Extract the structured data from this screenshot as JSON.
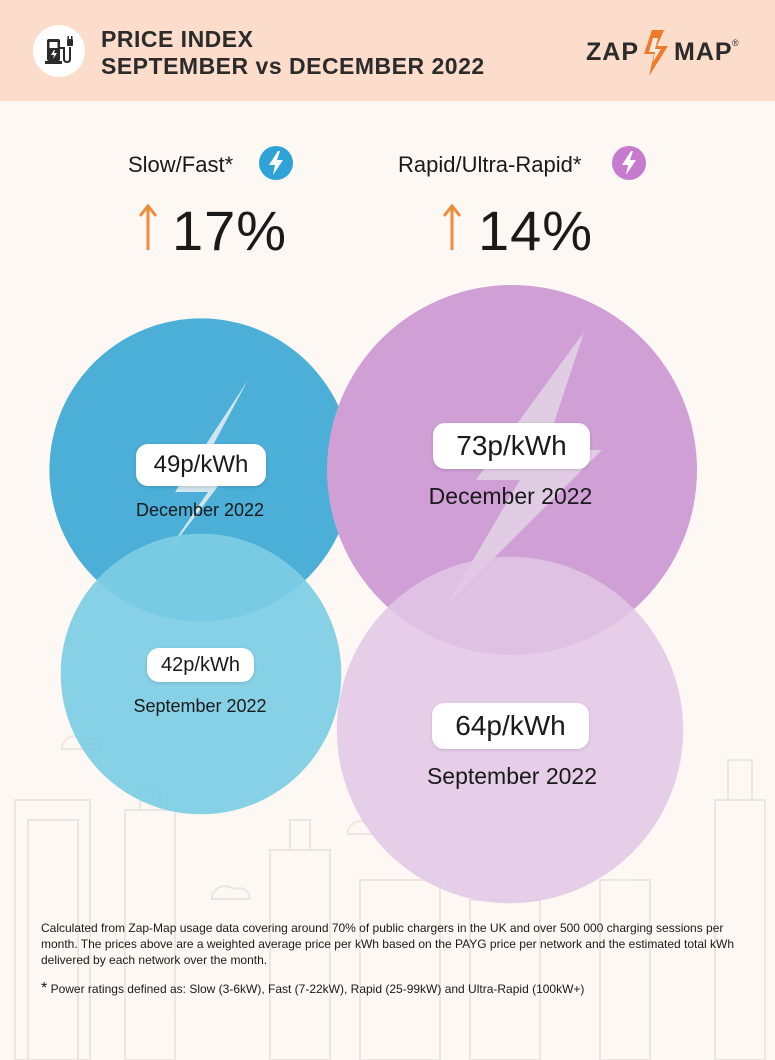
{
  "header": {
    "title_line1": "PRICE INDEX",
    "title_line2": "SEPTEMBER vs DECEMBER 2022",
    "logo_left": "ZAP",
    "logo_right": "MAP",
    "logo_mark": "®",
    "icon": "ev-charger-icon"
  },
  "colors": {
    "header_bg": "#fcdccb",
    "slow_dec": "#4bafd8",
    "slow_sep": "#7ccde4",
    "rapid_dec": "#cf9fd6",
    "rapid_sep": "#e2c7e6",
    "arrow": "#f08c3a"
  },
  "chart_data": {
    "type": "bubble",
    "unit": "p/kWh",
    "groups": [
      {
        "name": "Slow/Fast*",
        "change_label": "17%",
        "change_direction": "up",
        "points": [
          {
            "period": "December 2022",
            "value": 49,
            "label": "49p/kWh"
          },
          {
            "period": "September 2022",
            "value": 42,
            "label": "42p/kWh"
          }
        ]
      },
      {
        "name": "Rapid/Ultra-Rapid*",
        "change_label": "14%",
        "change_direction": "up",
        "points": [
          {
            "period": "December 2022",
            "value": 73,
            "label": "73p/kWh"
          },
          {
            "period": "September 2022",
            "value": 64,
            "label": "64p/kWh"
          }
        ]
      }
    ]
  },
  "footnotes": {
    "method": "Calculated from Zap-Map usage data covering around 70% of public chargers in the UK and over 500 000 charging sessions per month. The prices above are a weighted average price per kWh based on the PAYG price per network and the estimated total kWh delivered by each network over the month.",
    "star": "*",
    "power": "Power ratings defined as: Slow (3-6kW), Fast (7-22kW), Rapid (25-99kW) and Ultra-Rapid (100kW+)"
  }
}
